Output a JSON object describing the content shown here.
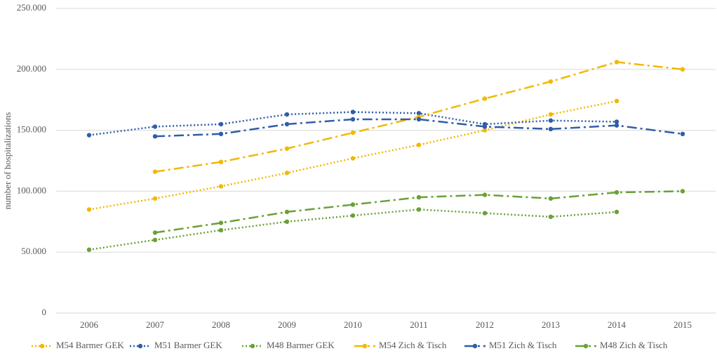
{
  "chart_data": {
    "type": "line",
    "y_label": "number  of hospitalizations",
    "categories": [
      "2006",
      "2007",
      "2008",
      "2009",
      "2010",
      "2011",
      "2012",
      "2013",
      "2014",
      "2015"
    ],
    "ylim": [
      0,
      250000
    ],
    "yticks": [
      0,
      {
        "value": 50000,
        "label": "50.000"
      },
      {
        "value": 100000,
        "label": "100.000"
      },
      {
        "value": 150000,
        "label": "150.000"
      },
      {
        "value": 200000,
        "label": "200.000"
      },
      {
        "value": 250000,
        "label": "250.000"
      }
    ],
    "grid": true,
    "legend": "bottom",
    "series": [
      {
        "name": "M54 Barmer GEK",
        "color": "#f2b800",
        "style": "dotted",
        "values": [
          85000,
          94000,
          104000,
          115000,
          127000,
          138000,
          150000,
          163000,
          174000,
          null
        ]
      },
      {
        "name": "M51 Barmer GEK",
        "color": "#2f5da8",
        "style": "dotted",
        "values": [
          146000,
          153000,
          155000,
          163000,
          165000,
          164000,
          155000,
          158000,
          157000,
          null
        ]
      },
      {
        "name": "M48 Barmer GEK",
        "color": "#6aa136",
        "style": "dotted",
        "values": [
          52000,
          60000,
          68000,
          75000,
          80000,
          85000,
          82000,
          79000,
          83000,
          null
        ]
      },
      {
        "name": "M54 Zich & Tisch",
        "color": "#f2b800",
        "style": "dashdot",
        "values": [
          null,
          116000,
          124000,
          135000,
          148000,
          161000,
          176000,
          190000,
          206000,
          200000
        ]
      },
      {
        "name": "M51 Zich & Tisch",
        "color": "#2f5da8",
        "style": "dashdot",
        "values": [
          null,
          145000,
          147000,
          155000,
          159000,
          159000,
          153000,
          151000,
          154000,
          147000
        ]
      },
      {
        "name": "M48 Zich & Tisch",
        "color": "#6aa136",
        "style": "dashdot",
        "values": [
          null,
          66000,
          74000,
          83000,
          89000,
          95000,
          97000,
          94000,
          99000,
          100000
        ]
      }
    ]
  }
}
